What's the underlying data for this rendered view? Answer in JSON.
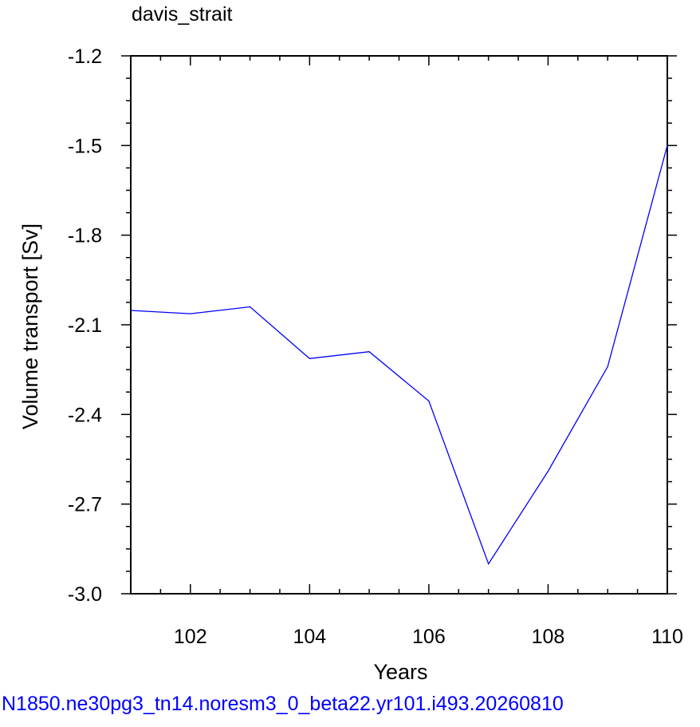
{
  "chart_data": {
    "type": "line",
    "title": "davis_strait",
    "xlabel": "Years",
    "ylabel": "Volume transport [Sv]",
    "xlim": [
      101,
      110
    ],
    "ylim": [
      -3.0,
      -1.2
    ],
    "x_ticks": [
      102,
      104,
      106,
      108,
      110
    ],
    "x_tick_labels": [
      "102",
      "104",
      "106",
      "108",
      "110"
    ],
    "y_ticks": [
      -3.0,
      -2.7,
      -2.4,
      -2.1,
      -1.8,
      -1.5,
      -1.2
    ],
    "y_tick_labels": [
      "-3.0",
      "-2.7",
      "-2.4",
      "-2.1",
      "-1.8",
      "-1.5",
      "-1.2"
    ],
    "grid": false,
    "series": [
      {
        "color": "#0000ff",
        "x": [
          101,
          102,
          103,
          104,
          105,
          106,
          107,
          108,
          109,
          110
        ],
        "y": [
          -2.052,
          -2.063,
          -2.04,
          -2.213,
          -2.19,
          -2.355,
          -2.9,
          -2.59,
          -2.24,
          -1.5
        ]
      }
    ]
  },
  "footer": "N1850.ne30pg3_tn14.noresm3_0_beta22.yr101.i493.20260810"
}
